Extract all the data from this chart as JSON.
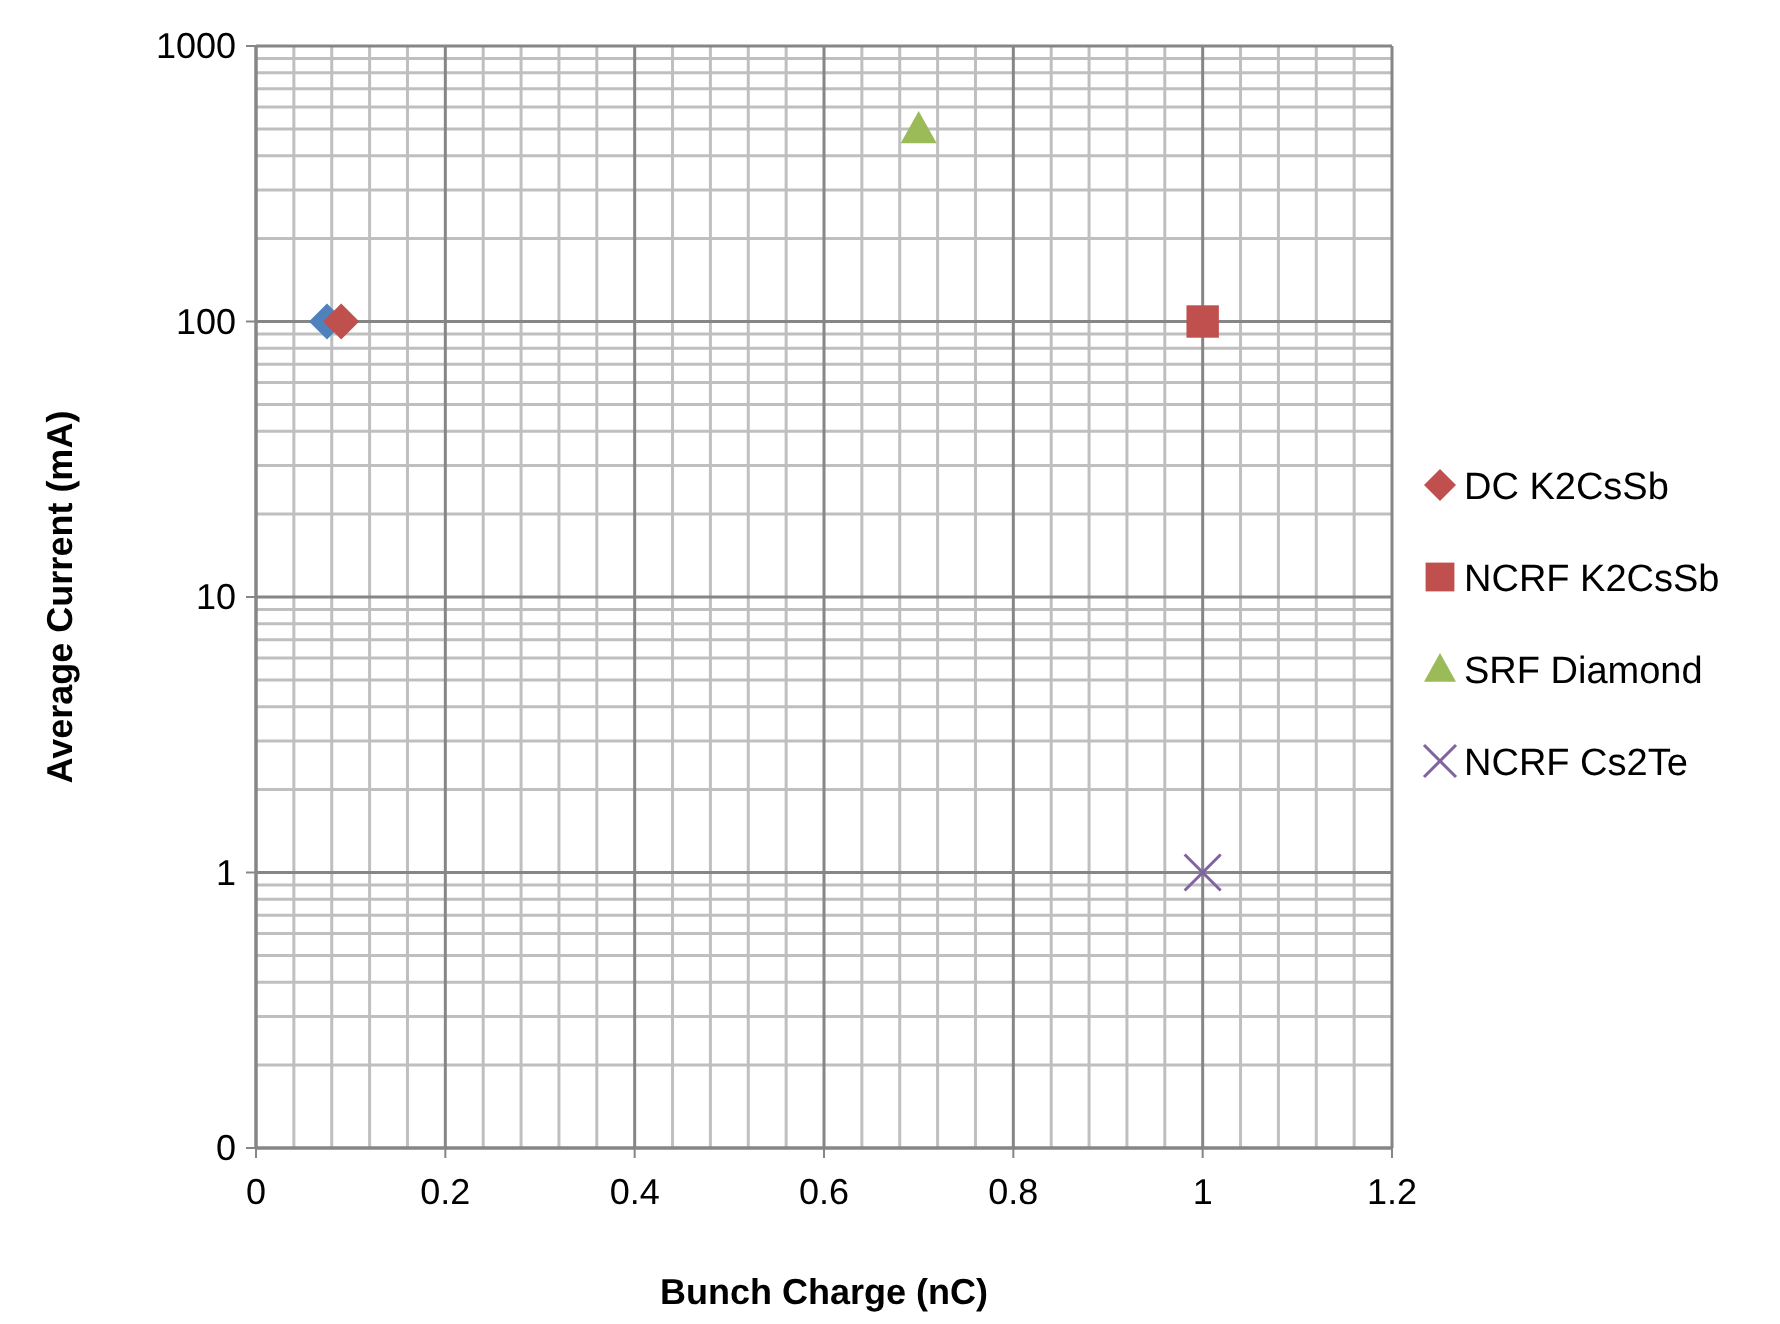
{
  "chart_data": {
    "type": "scatter",
    "xlabel": "Bunch Charge (nC)",
    "ylabel": "Average Current (mA)",
    "log": "y",
    "xlim": [
      0,
      1.2
    ],
    "xticks": [
      0,
      0.2,
      0.4,
      0.6,
      0.8,
      1,
      1.2
    ],
    "ylim": [
      0.1,
      1000
    ],
    "yticks": [
      {
        "value": 0.1,
        "label": "0"
      },
      1,
      10,
      100,
      1000
    ],
    "grid": true,
    "legend": "right",
    "series": [
      {
        "color": "#4f81bd",
        "marker": "diamond",
        "x": [
          0.075
        ],
        "values": [
          100
        ]
      },
      {
        "name": "DC K2CsSb",
        "color": "#c0504d",
        "marker": "diamond",
        "x": [
          0.09
        ],
        "values": [
          100
        ]
      },
      {
        "name": "NCRF K2CsSb",
        "color": "#c0504d",
        "marker": "square",
        "x": [
          1
        ],
        "values": [
          100
        ]
      },
      {
        "name": "SRF Diamond",
        "color": "#9bbb59",
        "marker": "triangle",
        "x": [
          0.7
        ],
        "values": [
          500
        ]
      },
      {
        "name": "NCRF Cs2Te",
        "color": "#8064a2",
        "marker": "cross",
        "x": [
          1
        ],
        "values": [
          1
        ]
      }
    ]
  }
}
